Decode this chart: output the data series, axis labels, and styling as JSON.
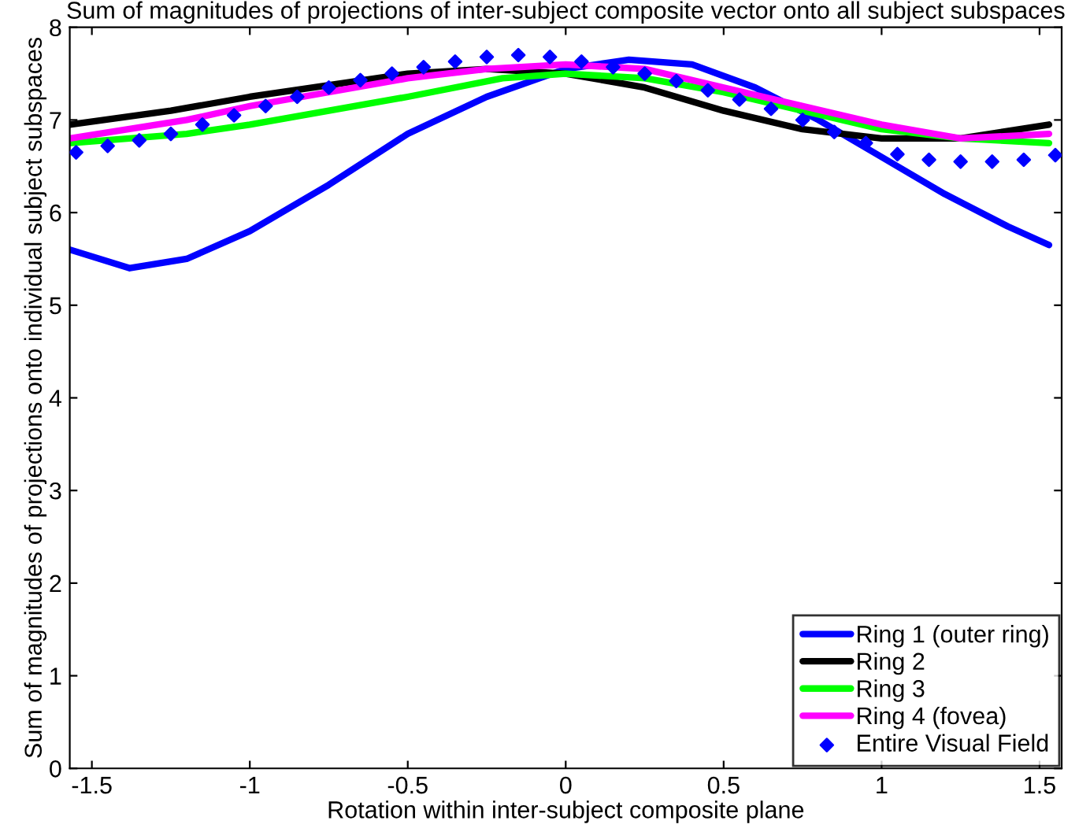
{
  "chart_data": {
    "type": "line",
    "title": "Sum of magnitudes of projections of inter-subject composite vector onto all subject subspaces",
    "xlabel": "Rotation within inter-subject composite plane",
    "ylabel": "Sum of magnitudes of projections onto individual subject subspaces",
    "xlim": [
      -1.57,
      1.57
    ],
    "ylim": [
      0,
      8
    ],
    "xticks": [
      -1.5,
      -1,
      -0.5,
      0,
      0.5,
      1,
      1.5
    ],
    "yticks": [
      0,
      1,
      2,
      3,
      4,
      5,
      6,
      7,
      8
    ],
    "grid": false,
    "legend": "bottom right",
    "series": [
      {
        "name": "Ring 1 (outer ring)",
        "color": "#0000ff",
        "x": [
          -1.57,
          -1.38,
          -1.2,
          -1.0,
          -0.75,
          -0.5,
          -0.25,
          0,
          0.2,
          0.4,
          0.6,
          0.8,
          1.0,
          1.2,
          1.4,
          1.53
        ],
        "values": [
          5.6,
          5.4,
          5.5,
          5.8,
          6.3,
          6.85,
          7.25,
          7.55,
          7.65,
          7.6,
          7.35,
          7.0,
          6.6,
          6.2,
          5.85,
          5.65
        ]
      },
      {
        "name": "Ring 2",
        "color": "#000000",
        "x": [
          -1.57,
          -1.25,
          -1.0,
          -0.5,
          -0.25,
          0,
          0.25,
          0.5,
          0.75,
          1.0,
          1.25,
          1.53
        ],
        "values": [
          6.95,
          7.1,
          7.25,
          7.5,
          7.55,
          7.5,
          7.35,
          7.1,
          6.9,
          6.8,
          6.8,
          6.95
        ]
      },
      {
        "name": "Ring 3",
        "color": "#00ff00",
        "x": [
          -1.57,
          -1.2,
          -1.0,
          -0.5,
          -0.2,
          0,
          0.25,
          0.5,
          0.75,
          1.0,
          1.25,
          1.53
        ],
        "values": [
          6.75,
          6.85,
          6.95,
          7.25,
          7.45,
          7.5,
          7.45,
          7.3,
          7.1,
          6.9,
          6.8,
          6.75
        ]
      },
      {
        "name": "Ring 4 (fovea)",
        "color": "#ff00ff",
        "x": [
          -1.57,
          -1.2,
          -1.0,
          -0.5,
          -0.25,
          0,
          0.25,
          0.5,
          0.75,
          1.0,
          1.25,
          1.53
        ],
        "values": [
          6.8,
          7.0,
          7.15,
          7.45,
          7.55,
          7.6,
          7.55,
          7.35,
          7.15,
          6.95,
          6.8,
          6.85
        ]
      },
      {
        "name": "Entire Visual Field",
        "color": "#0000ff",
        "type": "scatter",
        "marker": "diamond",
        "x": [
          -1.55,
          -1.45,
          -1.35,
          -1.25,
          -1.15,
          -1.05,
          -0.95,
          -0.85,
          -0.75,
          -0.65,
          -0.55,
          -0.45,
          -0.35,
          -0.25,
          -0.15,
          -0.05,
          0.05,
          0.15,
          0.25,
          0.35,
          0.45,
          0.55,
          0.65,
          0.75,
          0.85,
          0.95,
          1.05,
          1.15,
          1.25,
          1.35,
          1.45,
          1.55
        ],
        "values": [
          6.65,
          6.72,
          6.78,
          6.85,
          6.95,
          7.05,
          7.15,
          7.25,
          7.35,
          7.43,
          7.5,
          7.57,
          7.63,
          7.68,
          7.7,
          7.68,
          7.63,
          7.57,
          7.5,
          7.42,
          7.32,
          7.22,
          7.12,
          7.0,
          6.87,
          6.75,
          6.63,
          6.57,
          6.55,
          6.55,
          6.57,
          6.62
        ]
      }
    ]
  }
}
